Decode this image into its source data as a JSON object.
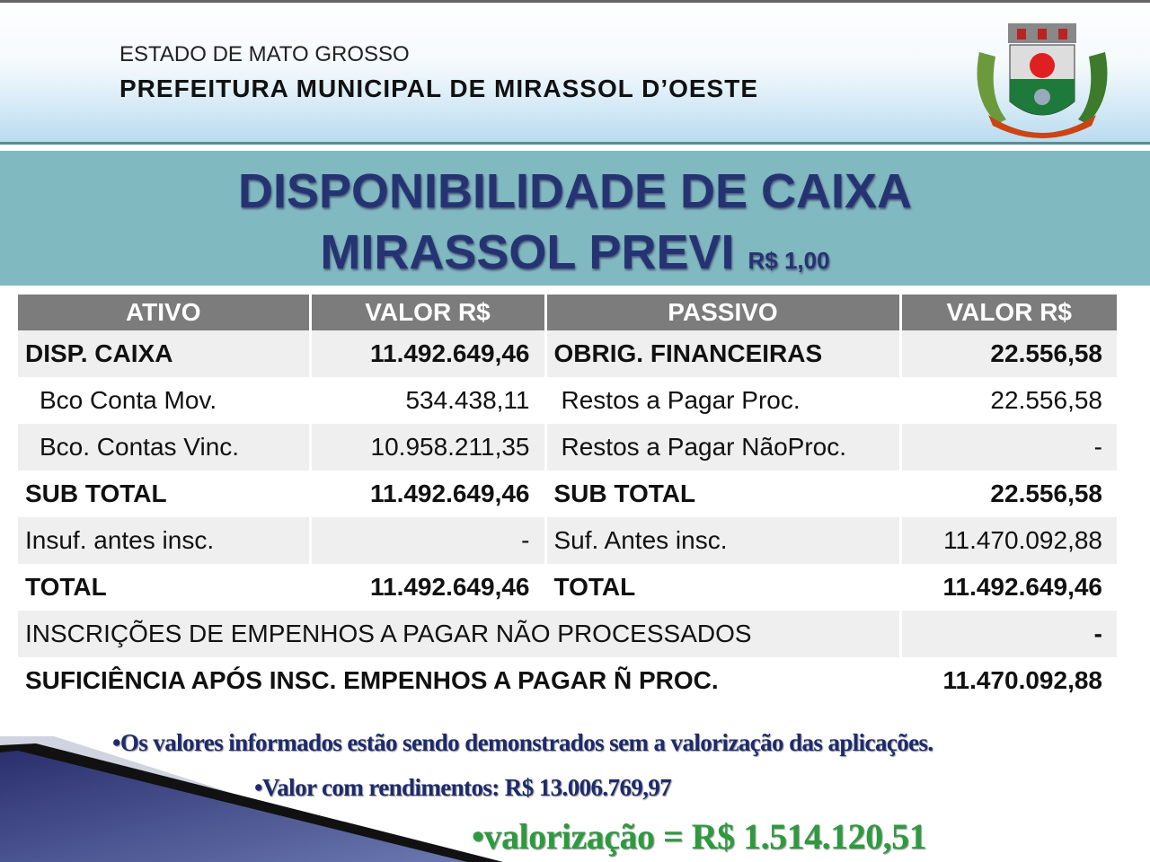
{
  "header": {
    "state": "ESTADO DE MATO GROSSO",
    "prefecture": "PREFEITURA MUNICIPAL DE MIRASSOL D’OESTE",
    "crest_icon": "municipal-coat-of-arms"
  },
  "title": {
    "line1": "DISPONIBILIDADE DE CAIXA",
    "line2": "MIRASSOL PREVI",
    "unit": "R$ 1,00"
  },
  "table": {
    "headers": [
      "ATIVO",
      "VALOR R$",
      "PASSIVO",
      "VALOR R$"
    ],
    "rows": [
      [
        "DISP. CAIXA",
        "11.492.649,46",
        "OBRIG. FINANCEIRAS",
        "22.556,58"
      ],
      [
        "Bco Conta Mov.",
        "534.438,11",
        "Restos a Pagar Proc.",
        "22.556,58"
      ],
      [
        "Bco. Contas Vinc.",
        "10.958.211,35",
        "Restos a Pagar NãoProc.",
        "-"
      ],
      [
        "SUB TOTAL",
        "11.492.649,46",
        "SUB TOTAL",
        "22.556,58"
      ],
      [
        "Insuf. antes insc.",
        "-",
        "Suf. Antes insc.",
        "11.470.092,88"
      ],
      [
        "TOTAL",
        "11.492.649,46",
        "TOTAL",
        "11.492.649,46"
      ]
    ],
    "inscricoes": {
      "label": "INSCRIÇÕES DE EMPENHOS A PAGAR NÃO PROCESSADOS",
      "value": "-"
    },
    "suficiencia": {
      "label": "SUFICIÊNCIA APÓS INSC. EMPENHOS A PAGAR Ñ PROC.",
      "value": "11.470.092,88"
    }
  },
  "notes": {
    "n1": "•Os valores informados estão sendo demonstrados sem a valorização das aplicações.",
    "n2": "•Valor com rendimentos: R$ 13.006.769,97",
    "n3": "•valorização = R$ 1.514.120,51"
  }
}
